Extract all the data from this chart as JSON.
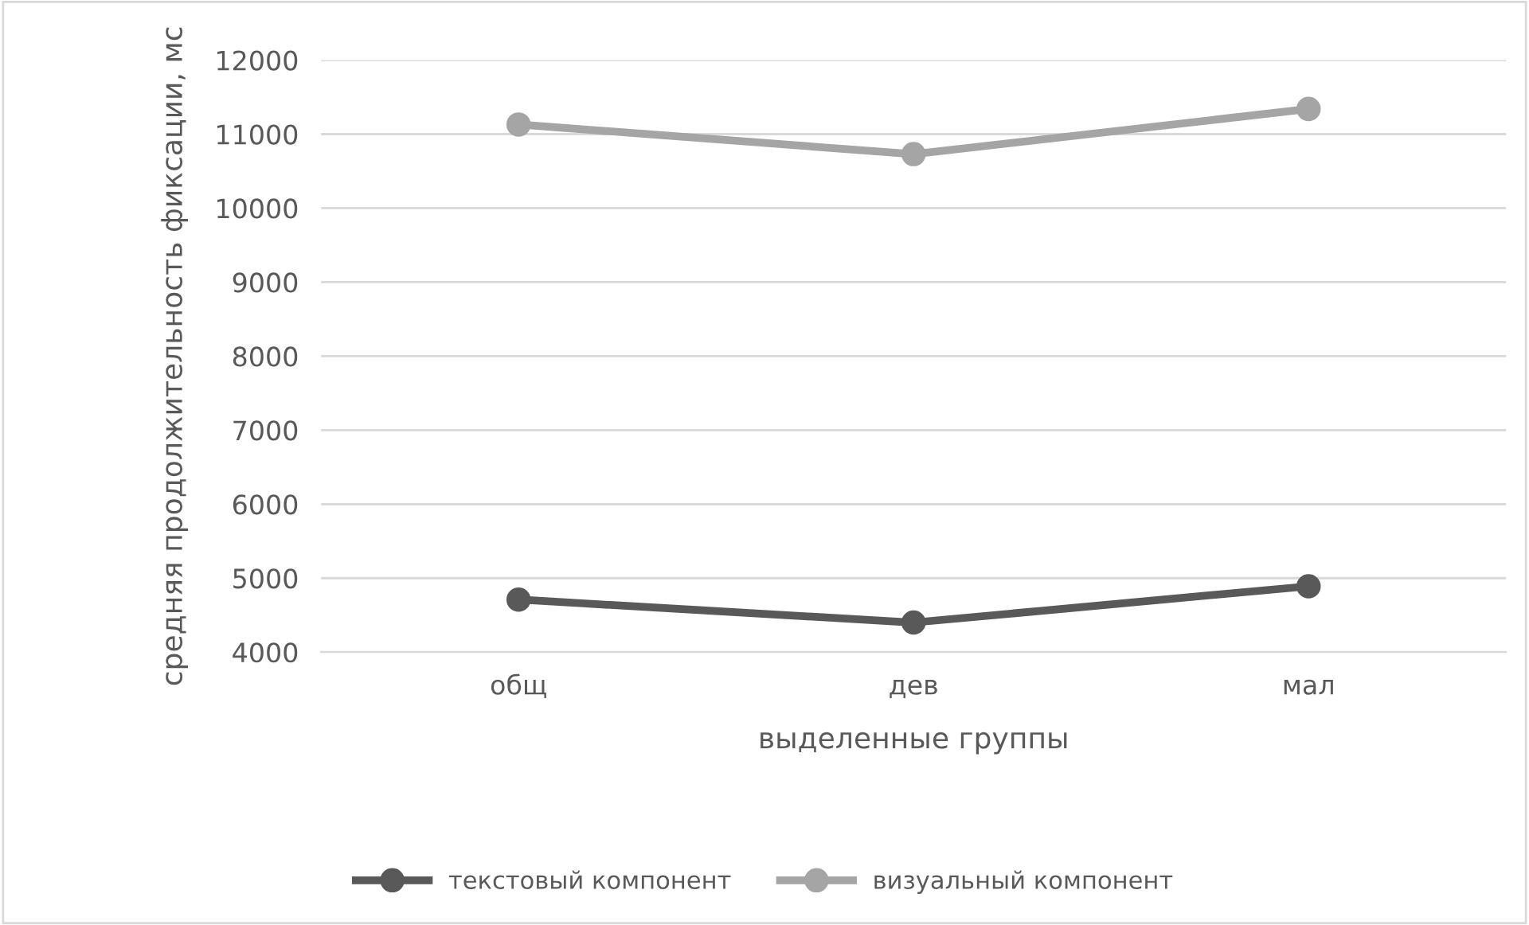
{
  "chart_data": {
    "type": "line",
    "xlabel": "выделенные группы",
    "ylabel": "средняя продолжительность фиксации, мс",
    "categories": [
      "общ",
      "дев",
      "мал"
    ],
    "series": [
      {
        "name": "текстовый компонент",
        "color": "#595959",
        "values": [
          4710,
          4400,
          4890
        ]
      },
      {
        "name": "визуальный компонент",
        "color": "#a5a5a5",
        "values": [
          11130,
          10730,
          11340
        ]
      }
    ],
    "ylim": [
      4000,
      12000
    ],
    "yticks": [
      4000,
      5000,
      6000,
      7000,
      8000,
      9000,
      10000,
      11000,
      12000
    ],
    "grid": "y",
    "legend": "bottom",
    "marker": "circle",
    "line_style": "solid"
  }
}
